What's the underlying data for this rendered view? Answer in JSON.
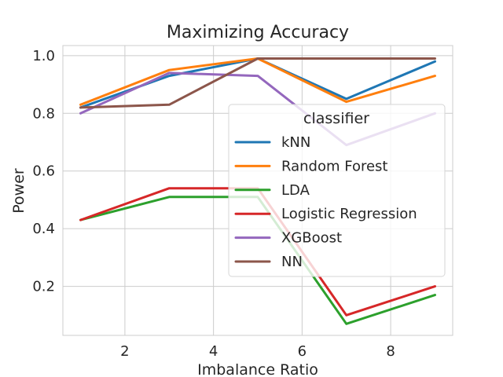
{
  "chart_data": {
    "type": "line",
    "title": "Maximizing Accuracy",
    "xlabel": "Imbalance Ratio",
    "ylabel": "Power",
    "x": [
      1,
      3,
      5,
      7,
      9
    ],
    "xlim": [
      0.6,
      9.4
    ],
    "ylim": [
      0.03,
      1.035
    ],
    "xticks": [
      2,
      4,
      6,
      8
    ],
    "yticks": [
      0.2,
      0.4,
      0.6,
      0.8,
      1.0
    ],
    "xtick_labels": [
      "2",
      "4",
      "6",
      "8"
    ],
    "ytick_labels": [
      "0.2",
      "0.4",
      "0.6",
      "0.8",
      "1.0"
    ],
    "grid": true,
    "legend": {
      "title": "classifier",
      "placement": "right"
    },
    "series": [
      {
        "name": "kNN",
        "color": "#1f77b4",
        "values": [
          0.82,
          0.93,
          0.99,
          0.85,
          0.98
        ]
      },
      {
        "name": "Random Forest",
        "color": "#ff7f0e",
        "values": [
          0.83,
          0.95,
          0.99,
          0.84,
          0.93
        ]
      },
      {
        "name": "LDA",
        "color": "#2ca02c",
        "values": [
          0.43,
          0.51,
          0.51,
          0.07,
          0.17
        ]
      },
      {
        "name": "Logistic Regression",
        "color": "#d62728",
        "values": [
          0.43,
          0.54,
          0.54,
          0.1,
          0.2
        ]
      },
      {
        "name": "XGBoost",
        "color": "#9467bd",
        "values": [
          0.8,
          0.94,
          0.93,
          0.69,
          0.8
        ]
      },
      {
        "name": "NN",
        "color": "#8c564b",
        "values": [
          0.82,
          0.83,
          0.99,
          0.99,
          0.99
        ]
      }
    ]
  }
}
